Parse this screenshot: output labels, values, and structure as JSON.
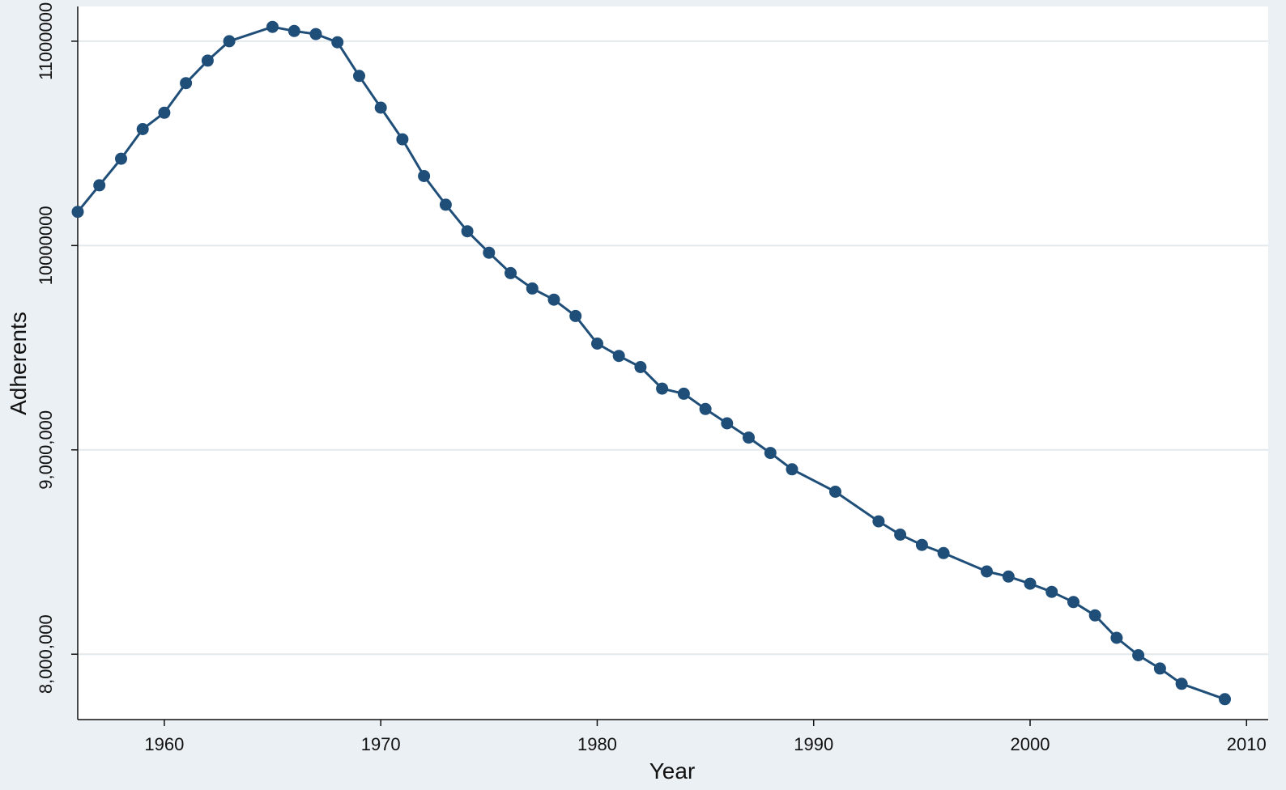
{
  "chart_data": {
    "type": "line",
    "title": "",
    "xlabel": "Year",
    "ylabel": "Adherents",
    "xlim": [
      1956,
      2011
    ],
    "ylim": [
      7680000,
      11170000
    ],
    "x_ticks": [
      {
        "value": 1960,
        "label": "1960"
      },
      {
        "value": 1970,
        "label": "1970"
      },
      {
        "value": 1980,
        "label": "1980"
      },
      {
        "value": 1990,
        "label": "1990"
      },
      {
        "value": 2000,
        "label": "2000"
      },
      {
        "value": 2010,
        "label": "2010"
      }
    ],
    "y_ticks": [
      {
        "value": 8000000,
        "label": "8,000,000"
      },
      {
        "value": 9000000,
        "label": "9,000,000"
      },
      {
        "value": 10000000,
        "label": "10000000"
      },
      {
        "value": 11000000,
        "label": "11000000"
      }
    ],
    "grid": "horizontal",
    "colors": {
      "series": "#1f4e79",
      "plot_background": "#ffffff",
      "outer_background": "#eaf0f3",
      "grid": "#e3e9ec"
    },
    "series": [
      {
        "x": [
          1956,
          1957,
          1958,
          1959,
          1960,
          1961,
          1962,
          1963,
          1965,
          1966,
          1967,
          1968,
          1969,
          1970,
          1971,
          1972,
          1973,
          1974,
          1975,
          1976,
          1977,
          1978,
          1979,
          1980,
          1981,
          1982,
          1983,
          1984,
          1985,
          1986,
          1987,
          1988,
          1989,
          1991,
          1993,
          1994,
          1995,
          1996,
          1998,
          1999,
          2000,
          2001,
          2002,
          2003,
          2004,
          2005,
          2006,
          2007,
          2009
        ],
        "y": [
          10165000,
          10295000,
          10425000,
          10570000,
          10650000,
          10795000,
          10905000,
          11000000,
          11070000,
          11050000,
          11035000,
          10995000,
          10830000,
          10675000,
          10520000,
          10340000,
          10200000,
          10070000,
          9965000,
          9865000,
          9790000,
          9735000,
          9655000,
          9520000,
          9460000,
          9405000,
          9300000,
          9275000,
          9200000,
          9130000,
          9060000,
          8985000,
          8905000,
          8795000,
          8650000,
          8585000,
          8535000,
          8495000,
          8405000,
          8380000,
          8345000,
          8305000,
          8255000,
          8190000,
          8080000,
          7995000,
          7930000,
          7855000,
          7780000
        ]
      }
    ]
  }
}
